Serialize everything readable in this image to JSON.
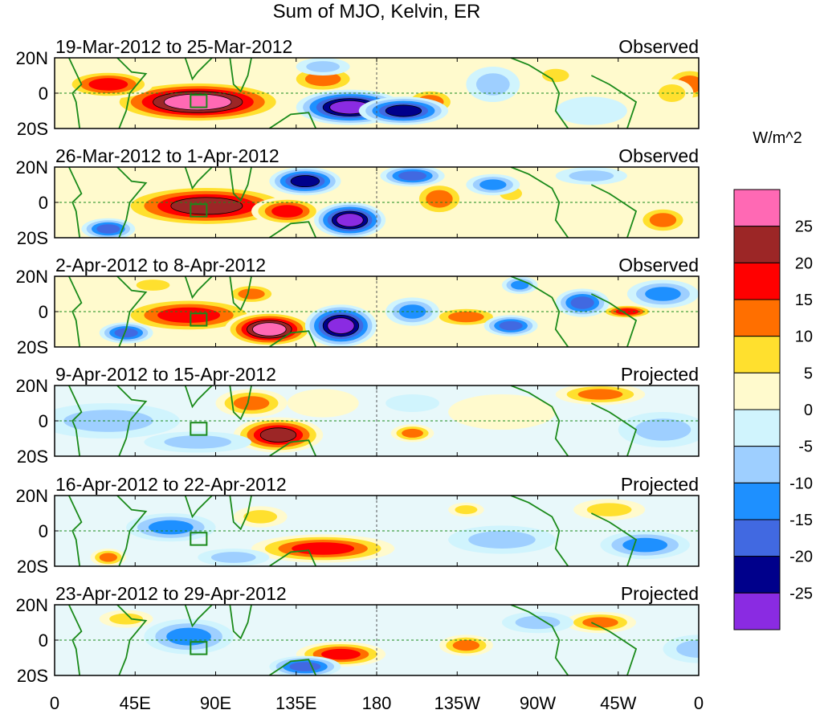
{
  "title": "Sum of MJO, Kelvin, ER",
  "panels": [
    {
      "date_range": "19-Mar-2012 to 25-Mar-2012",
      "status": "Observed"
    },
    {
      "date_range": "26-Mar-2012 to 1-Apr-2012",
      "status": "Observed"
    },
    {
      "date_range": "2-Apr-2012 to 8-Apr-2012",
      "status": "Observed"
    },
    {
      "date_range": "9-Apr-2012 to 15-Apr-2012",
      "status": "Projected"
    },
    {
      "date_range": "16-Apr-2012 to 22-Apr-2012",
      "status": "Projected"
    },
    {
      "date_range": "23-Apr-2012 to 29-Apr-2012",
      "status": "Projected"
    }
  ],
  "lat_labels": [
    "20N",
    "0",
    "20S"
  ],
  "lon_labels": [
    "0",
    "45E",
    "90E",
    "135E",
    "180",
    "135W",
    "90W",
    "45W",
    "0"
  ],
  "colorbar": {
    "unit": "W/m^2",
    "ticks": [
      "25",
      "20",
      "15",
      "10",
      "5",
      "0",
      "-5",
      "-10",
      "-15",
      "-20",
      "-25"
    ],
    "colors_top_to_bottom": [
      "#ff69b4",
      "#9c2626",
      "#ff0000",
      "#ff6f00",
      "#ffe02e",
      "#fffacd",
      "#d0f4fd",
      "#9ecfff",
      "#1e90ff",
      "#4169e1",
      "#00008b",
      "#8a2be2"
    ]
  }
}
